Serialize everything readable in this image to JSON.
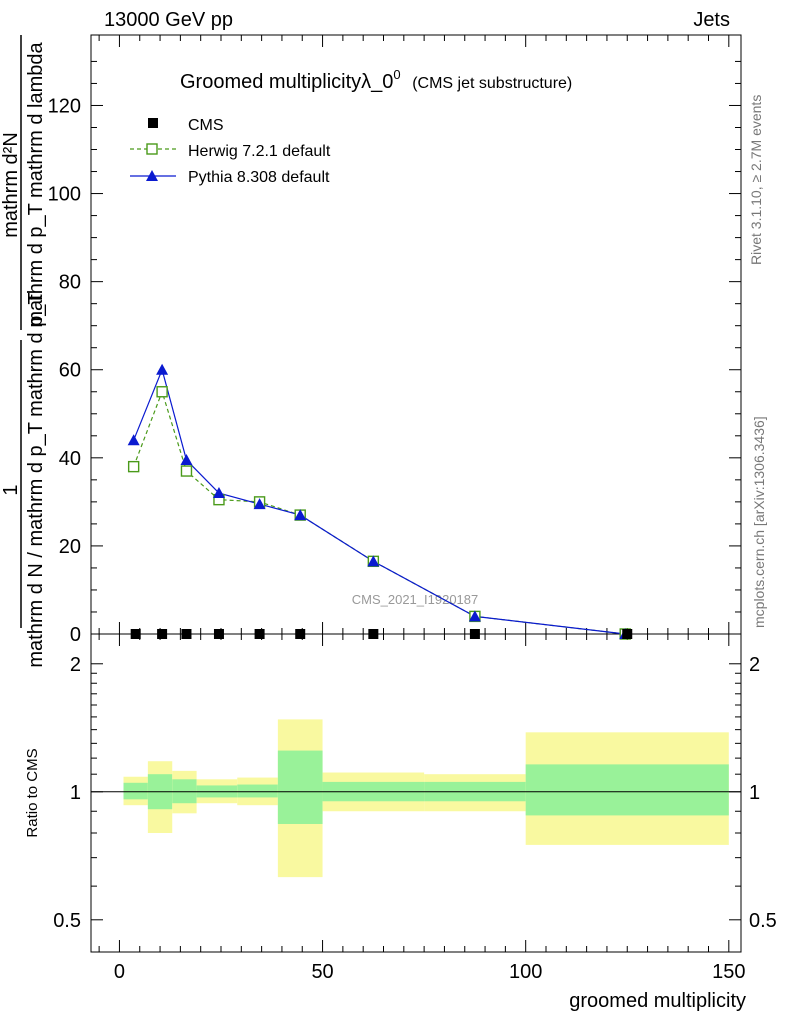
{
  "header": {
    "beam": "13000 GeV pp",
    "category": "Jets"
  },
  "side_labels": {
    "rivet": "Rivet 3.1.10, ≥ 2.7M events",
    "site": "mcplots.cern.ch [arXiv:1306.3436]"
  },
  "watermark": "CMS_2021_I1920187",
  "chart_data": {
    "type": "line",
    "title": "Groomed multiplicityλ_0",
    "title_superscript": "0",
    "subtitle": "(CMS jet substructure)",
    "ylabel_numerator": "mathrm d²N",
    "ylabel_denominator_top": "mathrm d p_T mathrm d lambda",
    "ylabel_prefix": "1",
    "ylabel_denominator_main": "mathrm d N / mathrm d p_T mathrm d p_T",
    "xlabel": "groomed multiplicity",
    "xlim": [
      -7,
      153
    ],
    "ylim": [
      0,
      136
    ],
    "x_ticks": [
      "0",
      "50",
      "100",
      "150"
    ],
    "y_ticks": [
      "0",
      "20",
      "40",
      "60",
      "80",
      "100",
      "120"
    ],
    "legend_position": "top-left",
    "bins": [
      [
        1,
        7
      ],
      [
        7,
        13
      ],
      [
        13,
        19
      ],
      [
        19,
        29
      ],
      [
        29,
        39
      ],
      [
        39,
        50
      ],
      [
        50,
        75
      ],
      [
        75,
        100
      ],
      [
        100,
        150
      ]
    ],
    "series": [
      {
        "name": "CMS",
        "x": [
          4,
          10.5,
          16.5,
          24.5,
          34.5,
          44.5,
          62.5,
          87.5,
          125
        ],
        "values": [
          0,
          0,
          0,
          0,
          0,
          0,
          0,
          0,
          0
        ],
        "color": "#000000",
        "marker": "square-filled"
      },
      {
        "name": "Herwig 7.2.1 default",
        "x": [
          3.5,
          10.5,
          16.5,
          24.5,
          34.5,
          44.5,
          62.5,
          87.5,
          124.5
        ],
        "values": [
          38,
          55,
          37,
          30.5,
          30,
          27,
          16.5,
          4,
          0
        ],
        "color": "#4a9a1a",
        "marker": "square-open",
        "dash": true
      },
      {
        "name": "Pythia 8.308 default",
        "x": [
          3.5,
          10.5,
          16.5,
          24.5,
          34.5,
          44.5,
          62.5,
          87.5,
          124.5
        ],
        "values": [
          44,
          60,
          39.5,
          32,
          29.5,
          27,
          16.5,
          4,
          0
        ],
        "color": "#0a1ad0",
        "marker": "triangle-filled",
        "dash": false
      }
    ],
    "ratio": {
      "ylabel": "Ratio to CMS",
      "y_ticks": [
        "0.5",
        "1",
        "2"
      ],
      "ylim": [
        0.42,
        2.35
      ],
      "scale": "log",
      "band_stat": [
        [
          0.96,
          1.05
        ],
        [
          0.91,
          1.1
        ],
        [
          0.94,
          1.07
        ],
        [
          0.97,
          1.035
        ],
        [
          0.97,
          1.04
        ],
        [
          0.84,
          1.25
        ],
        [
          0.95,
          1.055
        ],
        [
          0.95,
          1.055
        ],
        [
          0.88,
          1.16
        ]
      ],
      "band_total": [
        [
          0.93,
          1.085
        ],
        [
          0.8,
          1.18
        ],
        [
          0.89,
          1.12
        ],
        [
          0.94,
          1.07
        ],
        [
          0.93,
          1.08
        ],
        [
          0.63,
          1.48
        ],
        [
          0.9,
          1.11
        ],
        [
          0.9,
          1.1
        ],
        [
          0.75,
          1.38
        ]
      ],
      "colors": {
        "stat": "#99f299",
        "total": "#f9f9a0"
      }
    }
  }
}
